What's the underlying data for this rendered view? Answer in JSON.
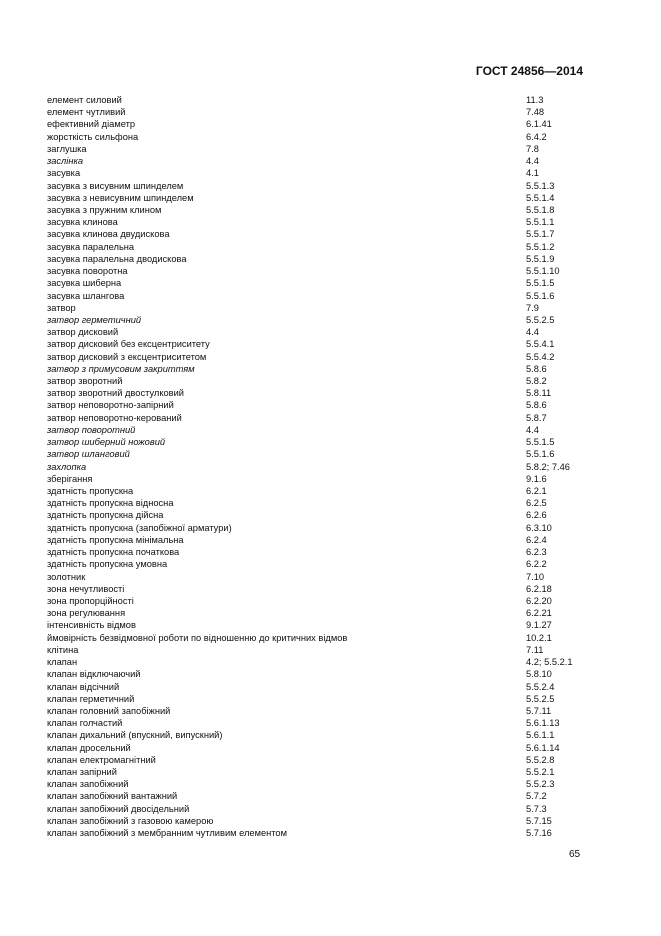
{
  "header": "ГОСТ 24856—2014",
  "page_number": "65",
  "entries": [
    {
      "term": "елемент силовий",
      "ref": "11.3",
      "italic": false
    },
    {
      "term": "елемент чутливий",
      "ref": "7.48",
      "italic": false
    },
    {
      "term": "ефективний діаметр",
      "ref": "6.1.41",
      "italic": false
    },
    {
      "term": "жорсткість сильфона",
      "ref": "6.4.2",
      "italic": false
    },
    {
      "term": "заглушка",
      "ref": "7.8",
      "italic": false
    },
    {
      "term": "заслінка",
      "ref": "4.4",
      "italic": true
    },
    {
      "term": "засувка",
      "ref": "4.1",
      "italic": false
    },
    {
      "term": "засувка з висувним шпинделем",
      "ref": "5.5.1.3",
      "italic": false
    },
    {
      "term": "засувка з невисувним шпинделем",
      "ref": "5.5.1.4",
      "italic": false
    },
    {
      "term": "засувка з пружним клином",
      "ref": "5.5.1.8",
      "italic": false
    },
    {
      "term": "засувка клинова",
      "ref": "5.5.1.1",
      "italic": false
    },
    {
      "term": "засувка клинова двудискова",
      "ref": "5.5.1.7",
      "italic": false
    },
    {
      "term": "засувка паралельна",
      "ref": "5.5.1.2",
      "italic": false
    },
    {
      "term": "засувка паралельна дводискова",
      "ref": "5.5.1.9",
      "italic": false
    },
    {
      "term": "засувка поворотна",
      "ref": "5.5.1.10",
      "italic": false
    },
    {
      "term": "засувка шиберна",
      "ref": "5.5.1.5",
      "italic": false
    },
    {
      "term": "засувка шлангова",
      "ref": "5.5.1.6",
      "italic": false
    },
    {
      "term": "затвор",
      "ref": "7.9",
      "italic": false
    },
    {
      "term": "затвор герметичний",
      "ref": "5.5.2.5",
      "italic": true
    },
    {
      "term": "затвор дисковий",
      "ref": "4.4",
      "italic": false
    },
    {
      "term": "затвор дисковий без ексцентриситету",
      "ref": "5.5.4.1",
      "italic": false
    },
    {
      "term": "затвор дисковий з ексцентриситетом",
      "ref": "5.5.4.2",
      "italic": false
    },
    {
      "term": "затвор з примусовим закриттям",
      "ref": "5.8.6",
      "italic": true
    },
    {
      "term": "затвор зворотний",
      "ref": "5.8.2",
      "italic": false
    },
    {
      "term": "затвор зворотний двостулковий",
      "ref": "5.8.11",
      "italic": false
    },
    {
      "term": "затвор неповоротно-запірний",
      "ref": "5.8.6",
      "italic": false
    },
    {
      "term": "затвор неповоротно-керований",
      "ref": "5.8.7",
      "italic": false
    },
    {
      "term": "затвор поворотний",
      "ref": "4.4",
      "italic": true
    },
    {
      "term": "затвор шиберний ножовий",
      "ref": "5.5.1.5",
      "italic": true
    },
    {
      "term": "затвор шланговий",
      "ref": "5.5.1.6",
      "italic": true
    },
    {
      "term": "захлопка",
      "ref": "5.8.2; 7.46",
      "italic": true
    },
    {
      "term": "зберігання",
      "ref": "9.1.6",
      "italic": false
    },
    {
      "term": "здатність пропускна",
      "ref": "6.2.1",
      "italic": false
    },
    {
      "term": "здатність пропускна відносна",
      "ref": "6.2.5",
      "italic": false
    },
    {
      "term": "здатність пропускна дійсна",
      "ref": "6.2.6",
      "italic": false
    },
    {
      "term": "здатність пропускна (запобіжної арматури)",
      "ref": "6.3.10",
      "italic": false
    },
    {
      "term": "здатність пропускна мінімальна",
      "ref": "6.2.4",
      "italic": false
    },
    {
      "term": "здатність пропускна початкова",
      "ref": "6.2.3",
      "italic": false
    },
    {
      "term": "здатність пропускна умовна",
      "ref": "6.2.2",
      "italic": false
    },
    {
      "term": "золотник",
      "ref": "7.10",
      "italic": false
    },
    {
      "term": "зона нечутливості",
      "ref": "6.2.18",
      "italic": false
    },
    {
      "term": "зона пропорційності",
      "ref": "6.2.20",
      "italic": false
    },
    {
      "term": "зона регулювання",
      "ref": "6.2.21",
      "italic": false
    },
    {
      "term": "інтенсивність відмов",
      "ref": "9.1.27",
      "italic": false
    },
    {
      "term": "ймовірність безвідмовної роботи по відношенню до критичних відмов",
      "ref": "10.2.1",
      "italic": false
    },
    {
      "term": "клітина",
      "ref": "7.11",
      "italic": false
    },
    {
      "term": "клапан",
      "ref": "4.2; 5.5.2.1",
      "italic": false
    },
    {
      "term": "клапан відключаючий",
      "ref": "5.8.10",
      "italic": false
    },
    {
      "term": "клапан відсічний",
      "ref": "5.5.2.4",
      "italic": false
    },
    {
      "term": "клапан герметичний",
      "ref": "5.5.2.5",
      "italic": false
    },
    {
      "term": "клапан головний запобіжний",
      "ref": "5.7.11",
      "italic": false
    },
    {
      "term": "клапан голчастий",
      "ref": "5.6.1.13",
      "italic": false
    },
    {
      "term": "клапан дихальний (впускний, випускний)",
      "ref": "5.6.1.1",
      "italic": false
    },
    {
      "term": "клапан дросельний",
      "ref": "5.6.1.14",
      "italic": false
    },
    {
      "term": "клапан електромагнітний",
      "ref": "5.5.2.8",
      "italic": false
    },
    {
      "term": "клапан запірний",
      "ref": "5.5.2.1",
      "italic": false
    },
    {
      "term": "клапан запобіжний",
      "ref": "5.5.2.3",
      "italic": false
    },
    {
      "term": "клапан запобіжний вантажний",
      "ref": "5.7.2",
      "italic": false
    },
    {
      "term": "клапан запобіжний двосідельний",
      "ref": "5.7.3",
      "italic": false
    },
    {
      "term": "клапан запобіжний з газовою камерою",
      "ref": "5.7.15",
      "italic": false
    },
    {
      "term": "клапан запобіжний з мембранним чутливим елементом",
      "ref": "5.7.16",
      "italic": false
    }
  ]
}
